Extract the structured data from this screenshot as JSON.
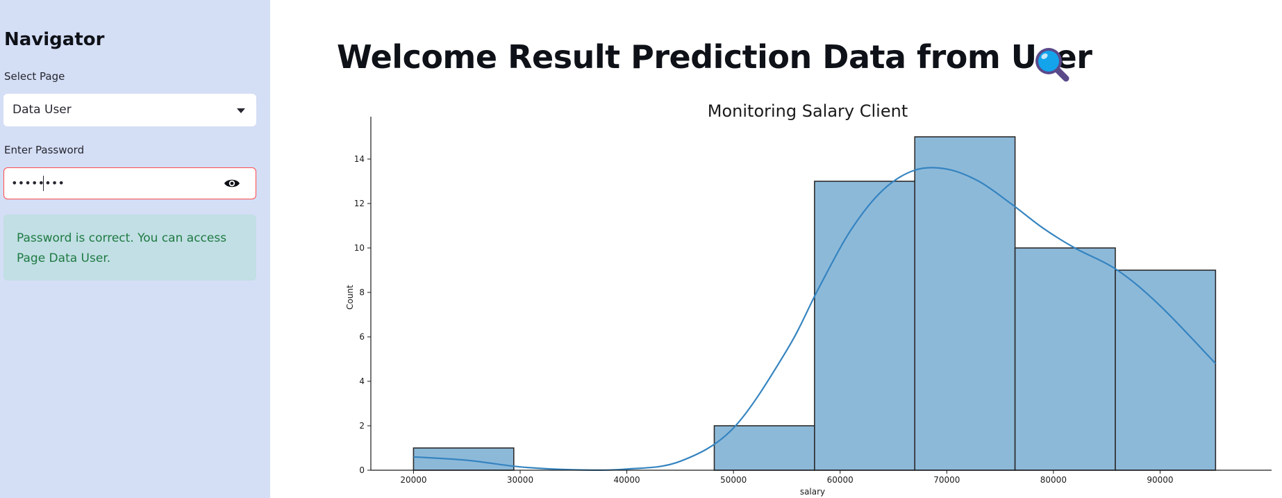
{
  "sidebar": {
    "title": "Navigator",
    "select_label": "Select Page",
    "select_value": "Data User",
    "password_label": "Enter Password",
    "password_value": "••••••••",
    "alert_text": "Password is correct. You can access Page Data User."
  },
  "main": {
    "title": "Welcome Result Prediction Data from User",
    "title_icon": "magnifying-glass-icon"
  },
  "colors": {
    "sidebar_bg": "#d4def5",
    "bar_fill": "#8db9d9",
    "kde_line": "#3584c0",
    "alert_bg": "#c1dfe4",
    "alert_text": "#1f7a43",
    "input_border_focus": "#ff4b4b"
  },
  "chart_data": {
    "type": "bar",
    "title": "Monitoring Salary Client",
    "xlabel": "salary",
    "ylabel": "Count",
    "bins": [
      {
        "start": 20000,
        "end": 29400,
        "count": 1
      },
      {
        "start": 29400,
        "end": 38800,
        "count": 0
      },
      {
        "start": 38800,
        "end": 48200,
        "count": 0
      },
      {
        "start": 48200,
        "end": 57600,
        "count": 2
      },
      {
        "start": 57600,
        "end": 67000,
        "count": 13
      },
      {
        "start": 67000,
        "end": 76400,
        "count": 15
      },
      {
        "start": 76400,
        "end": 85800,
        "count": 10
      },
      {
        "start": 85800,
        "end": 95200,
        "count": 9
      }
    ],
    "kde": {
      "x": [
        20000,
        25000,
        30000,
        35000,
        40000,
        45000,
        50000,
        55000,
        58000,
        61000,
        64000,
        67000,
        70000,
        73000,
        76000,
        79000,
        82000,
        86000,
        90000,
        95200
      ],
      "y": [
        0.6,
        0.45,
        0.15,
        0.02,
        0.05,
        0.4,
        1.9,
        5.4,
        8.2,
        10.8,
        12.6,
        13.5,
        13.55,
        13.0,
        12.0,
        10.9,
        10.0,
        9.0,
        7.4,
        4.8
      ]
    },
    "xlim": [
      16000,
      98500
    ],
    "ylim": [
      0,
      15.75
    ],
    "xticks": [
      20000,
      30000,
      40000,
      50000,
      60000,
      70000,
      80000,
      90000
    ],
    "yticks": [
      0,
      2,
      4,
      6,
      8,
      10,
      12,
      14
    ],
    "grid": false,
    "legend": "none"
  }
}
